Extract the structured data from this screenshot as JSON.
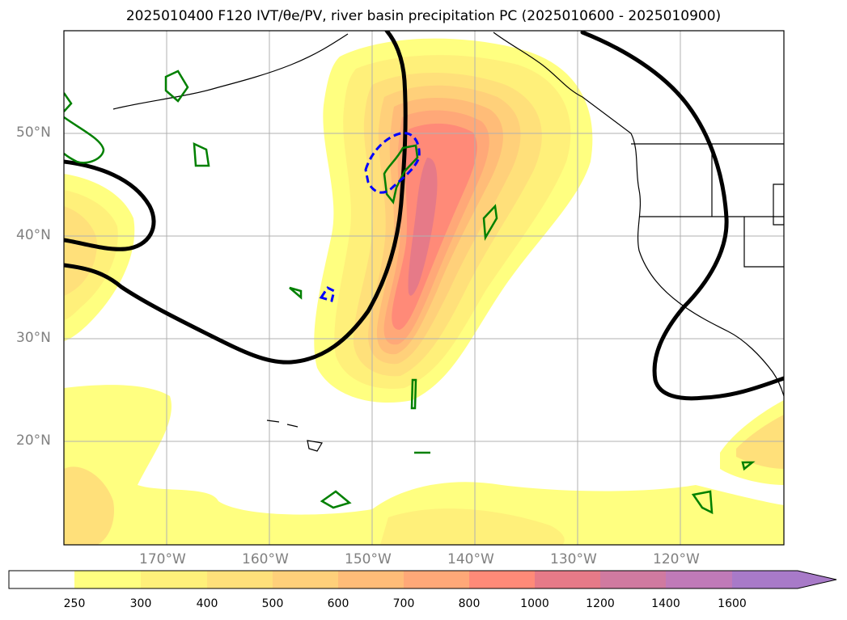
{
  "title": "2025010400 F120 IVT/θe/PV, river basin precipitation PC (2025010600 - 2025010900)",
  "map": {
    "lat_labels": [
      "50°N",
      "40°N",
      "30°N",
      "20°N"
    ],
    "lon_labels": [
      "170°W",
      "160°W",
      "150°W",
      "140°W",
      "130°W",
      "120°W"
    ]
  },
  "colorbar": {
    "levels": [
      "250",
      "300",
      "400",
      "500",
      "600",
      "700",
      "800",
      "1000",
      "1200",
      "1400",
      "1600"
    ],
    "colors": [
      "#ffffff",
      "#ffff80",
      "#fff07a",
      "#ffe07a",
      "#ffd07a",
      "#ffbc78",
      "#ffa878",
      "#ff8a78",
      "#e67a88",
      "#d07aa0",
      "#c07ab8",
      "#a87ac8"
    ]
  },
  "colors": {
    "ivt_contour": "#000000",
    "theta_e_contour": "#008000",
    "pv_contour": "#0000ff",
    "grid": "#b0b0b0",
    "label_gray": "#808080"
  }
}
